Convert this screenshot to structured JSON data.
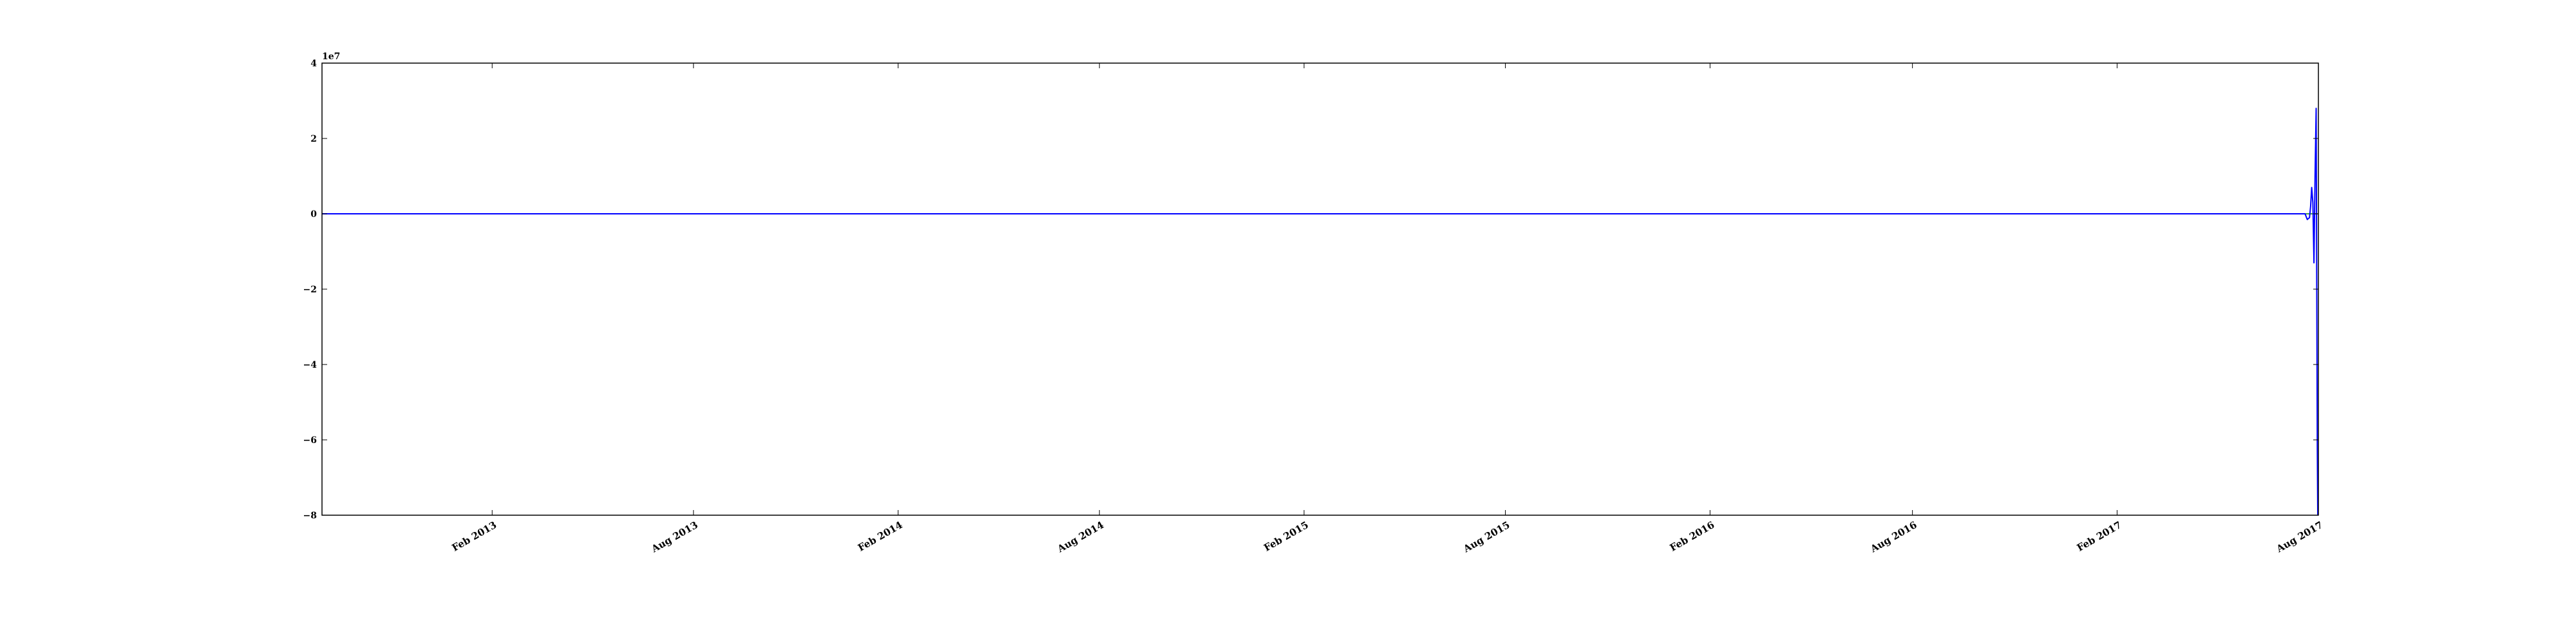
{
  "chart_data": {
    "type": "line",
    "title": "",
    "xlabel": "",
    "ylabel": "",
    "y_offset_label": "1e7",
    "xlim": [
      "2012-09-01",
      "2017-08-01"
    ],
    "ylim": [
      -8,
      4
    ],
    "y_ticks": [
      -8,
      -6,
      -4,
      -2,
      0,
      2,
      4
    ],
    "y_tick_labels": [
      "−8",
      "−6",
      "−4",
      "−2",
      "0",
      "2",
      "4"
    ],
    "x_ticks": [
      "2013-02-01",
      "2013-08-01",
      "2014-02-01",
      "2014-08-01",
      "2015-02-01",
      "2015-08-01",
      "2016-02-01",
      "2016-08-01",
      "2017-02-01",
      "2017-08-01"
    ],
    "x_tick_labels": [
      "Feb 2013",
      "Aug 2013",
      "Feb 2014",
      "Aug 2014",
      "Feb 2015",
      "Aug 2015",
      "Feb 2016",
      "Aug 2016",
      "Feb 2017",
      "Aug 2017"
    ],
    "grid": false,
    "series": [
      {
        "color": "#008000",
        "x": [
          "2012-09-01",
          "2017-08-01"
        ],
        "y": [
          0,
          0
        ]
      },
      {
        "color": "#0000ff",
        "x": [
          "2012-09-01",
          "2017-07-20",
          "2017-07-22",
          "2017-07-24",
          "2017-07-25",
          "2017-07-26",
          "2017-07-27",
          "2017-07-28",
          "2017-07-29",
          "2017-07-30",
          "2017-07-31",
          "2017-08-01"
        ],
        "y": [
          0,
          0,
          -0.15,
          -0.1,
          0.2,
          0.7,
          0.3,
          -1.3,
          1.0,
          2.8,
          -6.2,
          -8.0
        ]
      }
    ]
  }
}
